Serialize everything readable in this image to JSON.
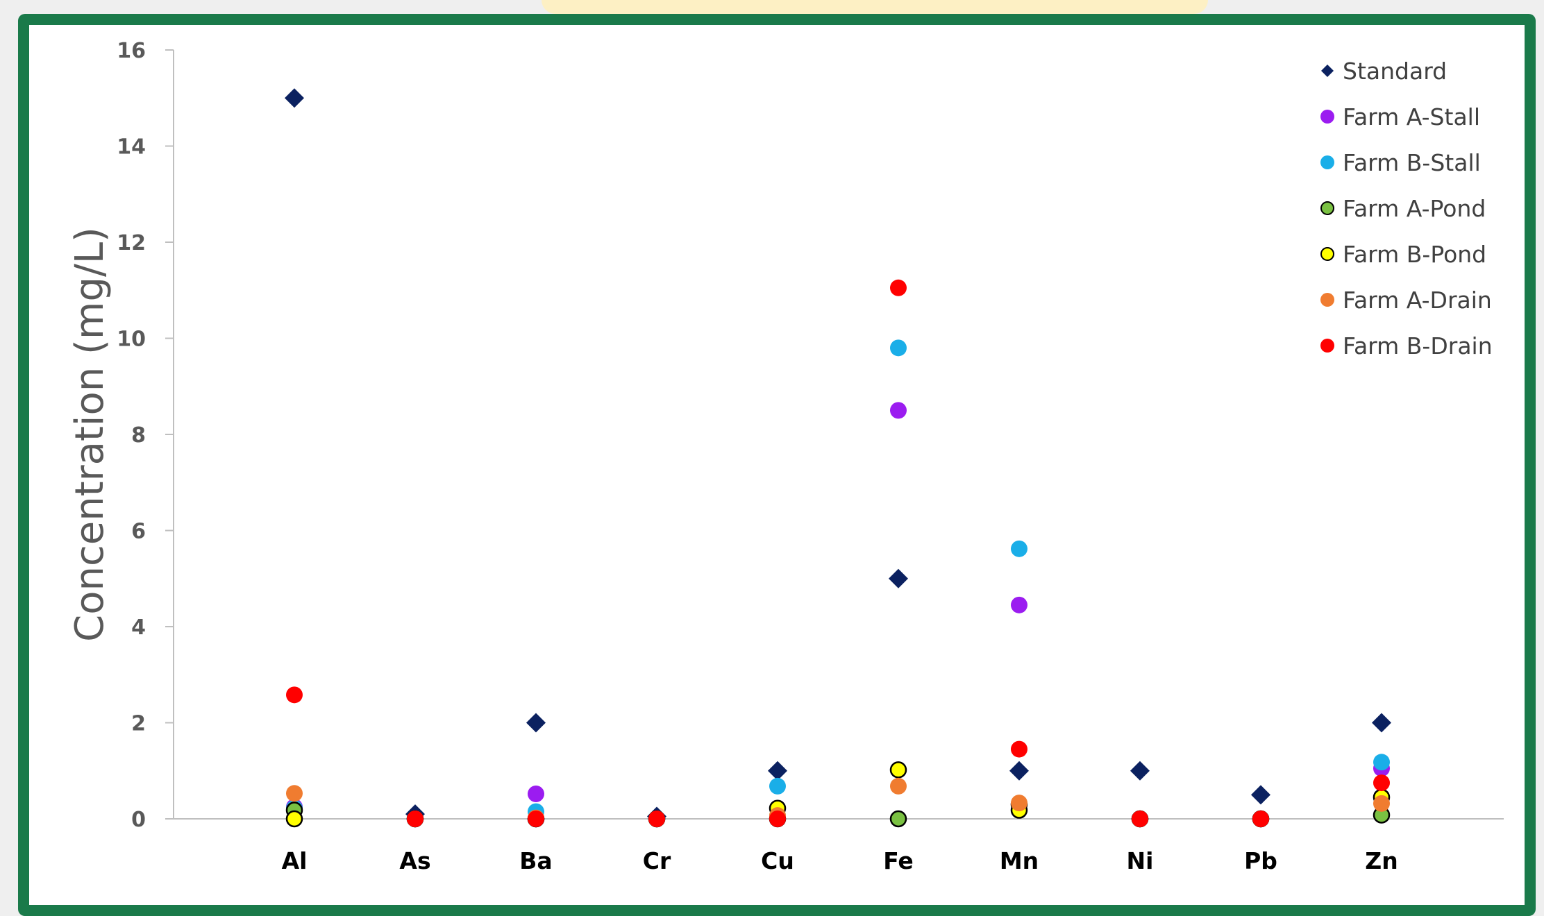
{
  "chart_data": {
    "type": "scatter",
    "title": "",
    "xlabel": "",
    "ylabel": "Concentration (mg/L)",
    "ylim": [
      0,
      16
    ],
    "yticks": [
      0,
      2,
      4,
      6,
      8,
      10,
      12,
      14,
      16
    ],
    "categories": [
      "Al",
      "As",
      "Ba",
      "Cr",
      "Cu",
      "Fe",
      "Mn",
      "Ni",
      "Pb",
      "Zn"
    ],
    "grid": false,
    "legend_position": "top-right",
    "series": [
      {
        "name": "Standard",
        "marker": "diamond",
        "color": "#0b2160",
        "outline": false,
        "values": [
          15,
          0.1,
          2,
          0.05,
          1,
          5,
          1,
          1,
          0.5,
          2
        ]
      },
      {
        "name": "Farm A-Stall",
        "marker": "circle",
        "color": "#9b1cf0",
        "outline": false,
        "values": [
          0.25,
          0,
          0.52,
          0,
          0.05,
          8.5,
          4.45,
          0,
          0,
          1.05
        ]
      },
      {
        "name": "Farm B-Stall",
        "marker": "circle",
        "color": "#1aaee8",
        "outline": false,
        "values": [
          0.22,
          0,
          0.15,
          0,
          0.68,
          9.8,
          5.62,
          0,
          0,
          1.18
        ]
      },
      {
        "name": "Farm A-Pond",
        "marker": "circle",
        "color": "#7ac142",
        "outline": true,
        "values": [
          0.18,
          0,
          0,
          0,
          0,
          0,
          0.3,
          0,
          0,
          0.08
        ]
      },
      {
        "name": "Farm B-Pond",
        "marker": "circle",
        "color": "#ffff00",
        "outline": true,
        "values": [
          0,
          0,
          0,
          0,
          0.22,
          1.02,
          0.18,
          0,
          0,
          0.45
        ]
      },
      {
        "name": "Farm A-Drain",
        "marker": "circle",
        "color": "#f07c30",
        "outline": false,
        "values": [
          0.53,
          0,
          0.02,
          0,
          0.07,
          0.68,
          0.33,
          0,
          0,
          0.32
        ]
      },
      {
        "name": "Farm B-Drain",
        "marker": "circle",
        "color": "#ff0000",
        "outline": false,
        "values": [
          2.58,
          0,
          0,
          0,
          0,
          11.05,
          1.45,
          0,
          0,
          0.75
        ]
      }
    ]
  }
}
